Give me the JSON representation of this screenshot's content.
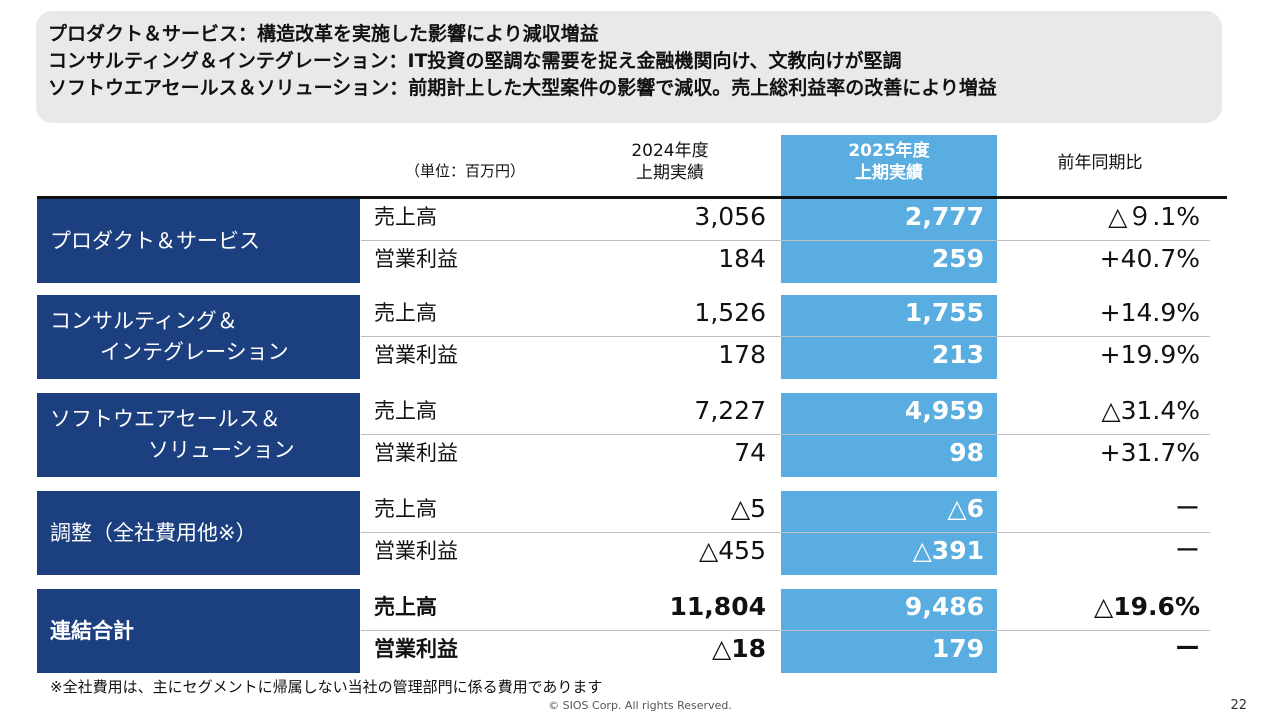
{
  "summary": [
    "プロダクト＆サービス：構造改革を実施した影響により減収増益",
    "コンサルティング＆インテグレーション：IT投資の堅調な需要を捉え金融機関向け、文教向けが堅調",
    "ソフトウエアセールス＆ソリューション：前期計上した大型案件の影響で減収。売上総利益率の改善により増益"
  ],
  "unit": "（単位：百万円）",
  "headers": {
    "prev": [
      "2024年度",
      "上期実績"
    ],
    "curr": [
      "2025年度",
      "上期実績"
    ],
    "yoy": "前年同期比"
  },
  "segments": [
    {
      "label": [
        "プロダクト＆サービス"
      ],
      "rows": [
        {
          "name": "売上高",
          "prev": "3,056",
          "curr": "2,777",
          "yoy": "△９.1%"
        },
        {
          "name": "営業利益",
          "prev": "184",
          "curr": "259",
          "yoy": "+40.7%"
        }
      ]
    },
    {
      "label": [
        "コンサルティング＆",
        "インテグレーション"
      ],
      "rows": [
        {
          "name": "売上高",
          "prev": "1,526",
          "curr": "1,755",
          "yoy": "+14.9%"
        },
        {
          "name": "営業利益",
          "prev": "178",
          "curr": "213",
          "yoy": "+19.9%"
        }
      ]
    },
    {
      "label": [
        "ソフトウエアセールス＆",
        "ソリューション"
      ],
      "rows": [
        {
          "name": "売上高",
          "prev": "7,227",
          "curr": "4,959",
          "yoy": "△31.4%"
        },
        {
          "name": "営業利益",
          "prev": "74",
          "curr": "98",
          "yoy": "+31.7%"
        }
      ]
    },
    {
      "label": [
        "調整（全社費用他※）"
      ],
      "rows": [
        {
          "name": "売上高",
          "prev": "△5",
          "curr": "△6",
          "yoy": "ー"
        },
        {
          "name": "営業利益",
          "prev": "△455",
          "curr": "△391",
          "yoy": "ー"
        }
      ]
    },
    {
      "label": [
        "連結合計"
      ],
      "rows": [
        {
          "name": "売上高",
          "prev": "11,804",
          "curr": "9,486",
          "yoy": "△19.6%"
        },
        {
          "name": "営業利益",
          "prev": "△18",
          "curr": "179",
          "yoy": "ー"
        }
      ]
    }
  ],
  "footnote": "※全社費用は、主にセグメントに帰属しない当社の管理部門に係る費用であります",
  "copyright": "© SIOS Corp. All rights Reserved.",
  "page_number": "22"
}
